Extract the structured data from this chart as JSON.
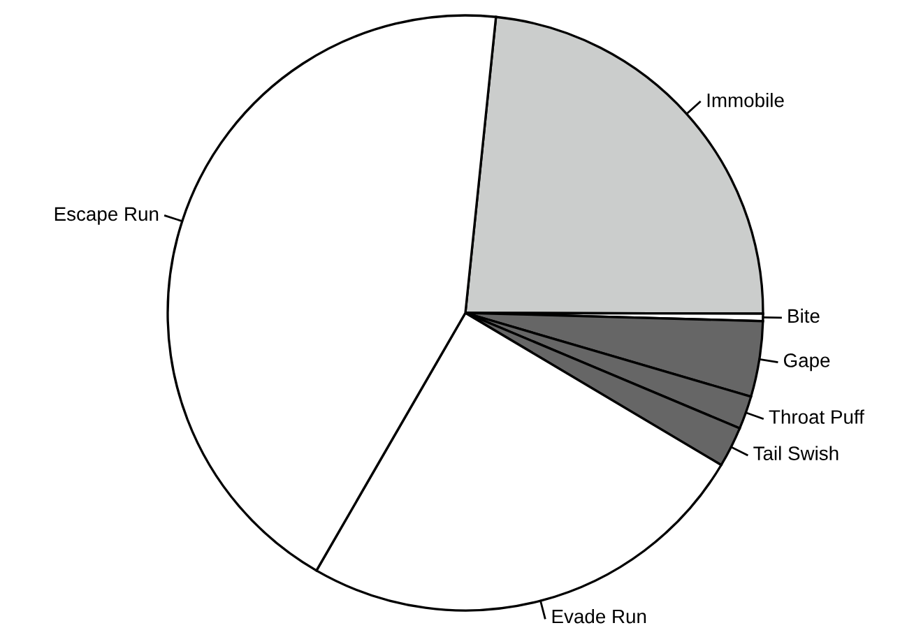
{
  "chart_data": {
    "type": "pie",
    "categories": [
      "Immobile",
      "Bite",
      "Gape",
      "Throat Puff",
      "Tail Swish",
      "Evade Run",
      "Escape Run"
    ],
    "values": [
      23.4,
      0.4,
      4.1,
      1.8,
      2.2,
      24.8,
      43.3
    ],
    "colors": [
      "#cbcdcc",
      "#ffffff",
      "#666666",
      "#666666",
      "#666666",
      "#ffffff",
      "#ffffff"
    ]
  }
}
